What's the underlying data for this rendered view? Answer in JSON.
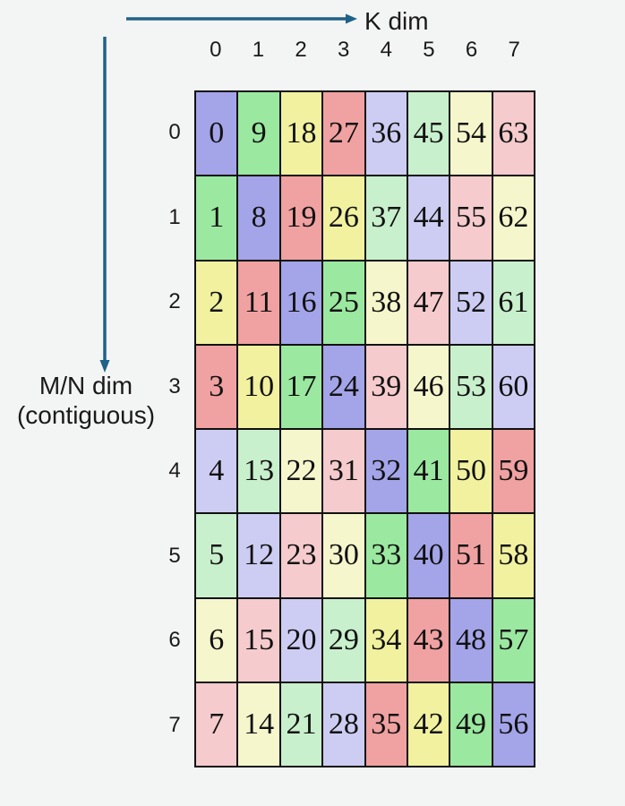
{
  "labels": {
    "k_dim": "K dim",
    "mn_dim_line1": "M/N dim",
    "mn_dim_line2": "(contiguous)"
  },
  "colors": {
    "arrow": "#1F6287",
    "background": "#F3F4F4",
    "cell_border": "#111111",
    "text": "#1a1a1a"
  },
  "palette": {
    "purple_strong": "#A4A4E9",
    "green_strong": "#9BE8A0",
    "yellow_strong": "#F1F1A0",
    "red_strong": "#F0A1A1",
    "purple_light": "#CDCDF3",
    "green_light": "#C8F0CC",
    "yellow_light": "#F6F6CD",
    "red_light": "#F5CBCD"
  },
  "col_headers": [
    "0",
    "1",
    "2",
    "3",
    "4",
    "5",
    "6",
    "7"
  ],
  "row_headers": [
    "0",
    "1",
    "2",
    "3",
    "4",
    "5",
    "6",
    "7"
  ],
  "grid": {
    "rows": [
      [
        {
          "value": "0",
          "color": "purple_strong"
        },
        {
          "value": "9",
          "color": "green_strong"
        },
        {
          "value": "18",
          "color": "yellow_strong"
        },
        {
          "value": "27",
          "color": "red_strong"
        },
        {
          "value": "36",
          "color": "purple_light"
        },
        {
          "value": "45",
          "color": "green_light"
        },
        {
          "value": "54",
          "color": "yellow_light"
        },
        {
          "value": "63",
          "color": "red_light"
        }
      ],
      [
        {
          "value": "1",
          "color": "green_strong"
        },
        {
          "value": "8",
          "color": "purple_strong"
        },
        {
          "value": "19",
          "color": "red_strong"
        },
        {
          "value": "26",
          "color": "yellow_strong"
        },
        {
          "value": "37",
          "color": "green_light"
        },
        {
          "value": "44",
          "color": "purple_light"
        },
        {
          "value": "55",
          "color": "red_light"
        },
        {
          "value": "62",
          "color": "yellow_light"
        }
      ],
      [
        {
          "value": "2",
          "color": "yellow_strong"
        },
        {
          "value": "11",
          "color": "red_strong"
        },
        {
          "value": "16",
          "color": "purple_strong"
        },
        {
          "value": "25",
          "color": "green_strong"
        },
        {
          "value": "38",
          "color": "yellow_light"
        },
        {
          "value": "47",
          "color": "red_light"
        },
        {
          "value": "52",
          "color": "purple_light"
        },
        {
          "value": "61",
          "color": "green_light"
        }
      ],
      [
        {
          "value": "3",
          "color": "red_strong"
        },
        {
          "value": "10",
          "color": "yellow_strong"
        },
        {
          "value": "17",
          "color": "green_strong"
        },
        {
          "value": "24",
          "color": "purple_strong"
        },
        {
          "value": "39",
          "color": "red_light"
        },
        {
          "value": "46",
          "color": "yellow_light"
        },
        {
          "value": "53",
          "color": "green_light"
        },
        {
          "value": "60",
          "color": "purple_light"
        }
      ],
      [
        {
          "value": "4",
          "color": "purple_light"
        },
        {
          "value": "13",
          "color": "green_light"
        },
        {
          "value": "22",
          "color": "yellow_light"
        },
        {
          "value": "31",
          "color": "red_light"
        },
        {
          "value": "32",
          "color": "purple_strong"
        },
        {
          "value": "41",
          "color": "green_strong"
        },
        {
          "value": "50",
          "color": "yellow_strong"
        },
        {
          "value": "59",
          "color": "red_strong"
        }
      ],
      [
        {
          "value": "5",
          "color": "green_light"
        },
        {
          "value": "12",
          "color": "purple_light"
        },
        {
          "value": "23",
          "color": "red_light"
        },
        {
          "value": "30",
          "color": "yellow_light"
        },
        {
          "value": "33",
          "color": "green_strong"
        },
        {
          "value": "40",
          "color": "purple_strong"
        },
        {
          "value": "51",
          "color": "red_strong"
        },
        {
          "value": "58",
          "color": "yellow_strong"
        }
      ],
      [
        {
          "value": "6",
          "color": "yellow_light"
        },
        {
          "value": "15",
          "color": "red_light"
        },
        {
          "value": "20",
          "color": "purple_light"
        },
        {
          "value": "29",
          "color": "green_light"
        },
        {
          "value": "34",
          "color": "yellow_strong"
        },
        {
          "value": "43",
          "color": "red_strong"
        },
        {
          "value": "48",
          "color": "purple_strong"
        },
        {
          "value": "57",
          "color": "green_strong"
        }
      ],
      [
        {
          "value": "7",
          "color": "red_light"
        },
        {
          "value": "14",
          "color": "yellow_light"
        },
        {
          "value": "21",
          "color": "green_light"
        },
        {
          "value": "28",
          "color": "purple_light"
        },
        {
          "value": "35",
          "color": "red_strong"
        },
        {
          "value": "42",
          "color": "yellow_strong"
        },
        {
          "value": "49",
          "color": "green_strong"
        },
        {
          "value": "56",
          "color": "purple_strong"
        }
      ]
    ]
  }
}
